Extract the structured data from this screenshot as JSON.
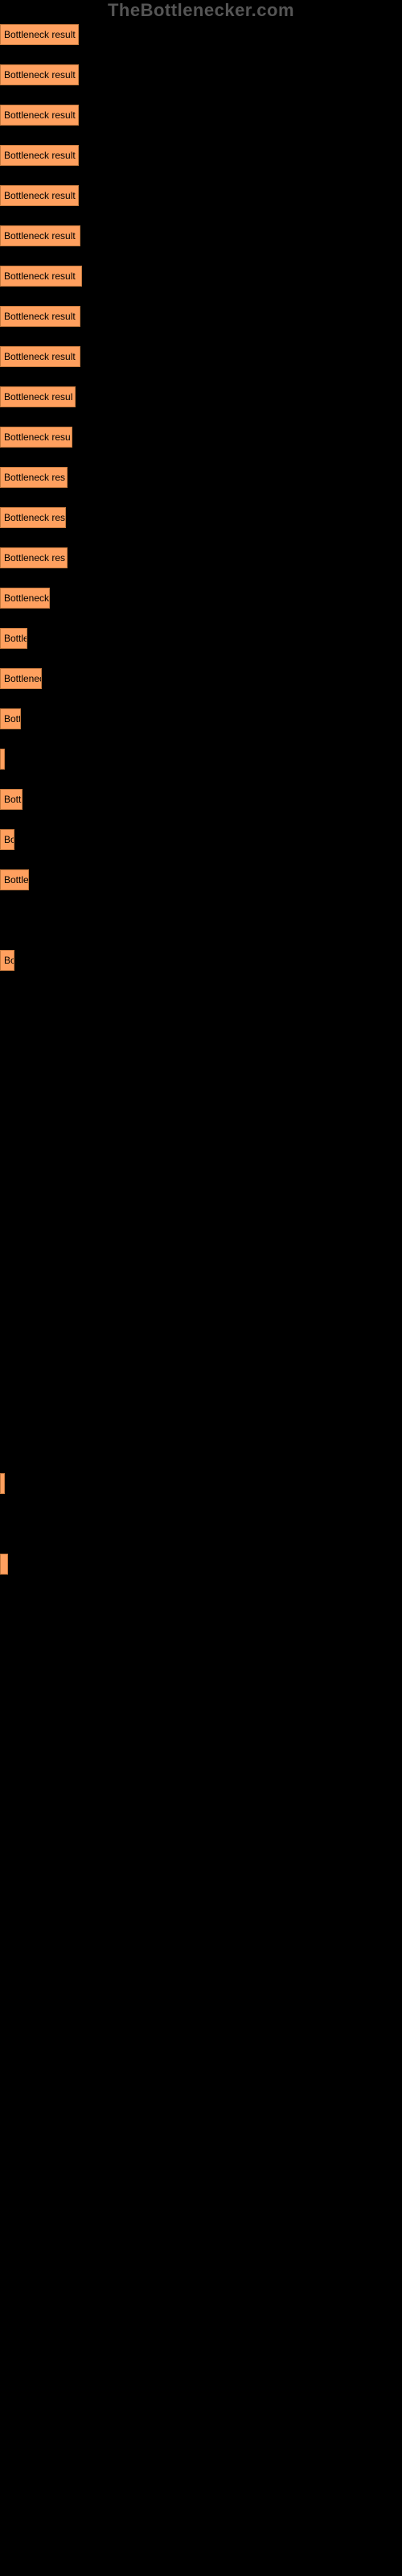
{
  "watermark": "TheBottlenecker.com",
  "bars": [
    {
      "label": "Bottleneck result",
      "width": 98
    },
    {
      "label": "Bottleneck result",
      "width": 98
    },
    {
      "label": "Bottleneck result",
      "width": 98
    },
    {
      "label": "Bottleneck result",
      "width": 98
    },
    {
      "label": "Bottleneck result",
      "width": 98
    },
    {
      "label": "Bottleneck result",
      "width": 100
    },
    {
      "label": "Bottleneck result",
      "width": 102
    },
    {
      "label": "Bottleneck result",
      "width": 100
    },
    {
      "label": "Bottleneck result",
      "width": 100
    },
    {
      "label": "Bottleneck resul",
      "width": 94
    },
    {
      "label": "Bottleneck resu",
      "width": 90
    },
    {
      "label": "Bottleneck res",
      "width": 84
    },
    {
      "label": "Bottleneck res",
      "width": 82
    },
    {
      "label": "Bottleneck res",
      "width": 84
    },
    {
      "label": "Bottleneck",
      "width": 62
    },
    {
      "label": "Bottle",
      "width": 34
    },
    {
      "label": "Bottlenec",
      "width": 52
    },
    {
      "label": "Bott",
      "width": 26
    },
    {
      "label": "",
      "width": 4
    },
    {
      "label": "Bott",
      "width": 28
    },
    {
      "label": "Bo",
      "width": 18
    },
    {
      "label": "Bottle",
      "width": 36
    },
    {
      "label": "",
      "width": 0
    },
    {
      "label": "Bo",
      "width": 18
    },
    {
      "label": "",
      "width": 0
    },
    {
      "label": "",
      "width": 0
    },
    {
      "label": "",
      "width": 0
    },
    {
      "label": "",
      "width": 0
    },
    {
      "label": "",
      "width": 0
    },
    {
      "label": "",
      "width": 0
    },
    {
      "label": "",
      "width": 0
    },
    {
      "label": "",
      "width": 0
    },
    {
      "label": "",
      "width": 0
    },
    {
      "label": "",
      "width": 0
    },
    {
      "label": "",
      "width": 0
    },
    {
      "label": "",
      "width": 0
    },
    {
      "label": "",
      "width": 4
    },
    {
      "label": "",
      "width": 0
    },
    {
      "label": "",
      "width": 10
    }
  ],
  "bar_color": "#ffa05f",
  "bar_border": "#c77a3e",
  "background": "#000000"
}
